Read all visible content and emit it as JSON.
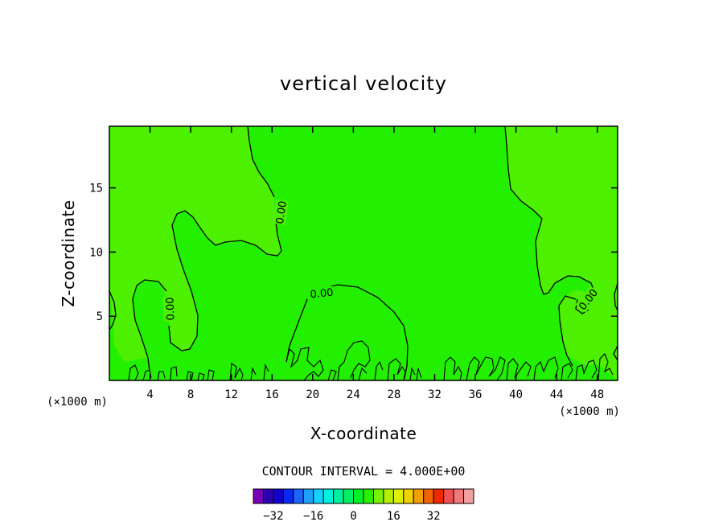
{
  "chart_data": {
    "type": "heatmap",
    "title": "vertical velocity",
    "xlabel": "X-coordinate",
    "ylabel": "Z-coordinate",
    "x_unit_label": "(×1000 m)",
    "xlim": [
      0,
      50
    ],
    "ylim": [
      0,
      19.8
    ],
    "x_ticks": [
      4,
      8,
      12,
      16,
      20,
      24,
      28,
      32,
      36,
      40,
      44,
      48
    ],
    "y_ticks": [
      5,
      10,
      15
    ],
    "contour_interval_label": "CONTOUR INTERVAL = 4.000E+00",
    "contour_line_labels": [
      "0.00",
      "0.00",
      "0.00",
      "0.00"
    ],
    "colorbar": {
      "colors": [
        "#7a00b5",
        "#2a00b0",
        "#1400cf",
        "#0a28f0",
        "#1e64ff",
        "#1ea0ff",
        "#14d2ff",
        "#00f0dc",
        "#00f0a0",
        "#00f064",
        "#00f028",
        "#28f000",
        "#78f000",
        "#b4f000",
        "#dcf000",
        "#f0d200",
        "#f0a000",
        "#f06400",
        "#f02800",
        "#f05050",
        "#f07878",
        "#f0a0a0"
      ],
      "tick_labels": [
        "-32",
        "-16",
        "0",
        "16",
        "32"
      ],
      "tick_values": [
        -32,
        -16,
        0,
        16,
        32
      ]
    },
    "field_colors": {
      "background": "#22f000",
      "band_0_to_minus4": "#00f028",
      "band_0_to_4": "#4cf000"
    },
    "grid": false
  }
}
